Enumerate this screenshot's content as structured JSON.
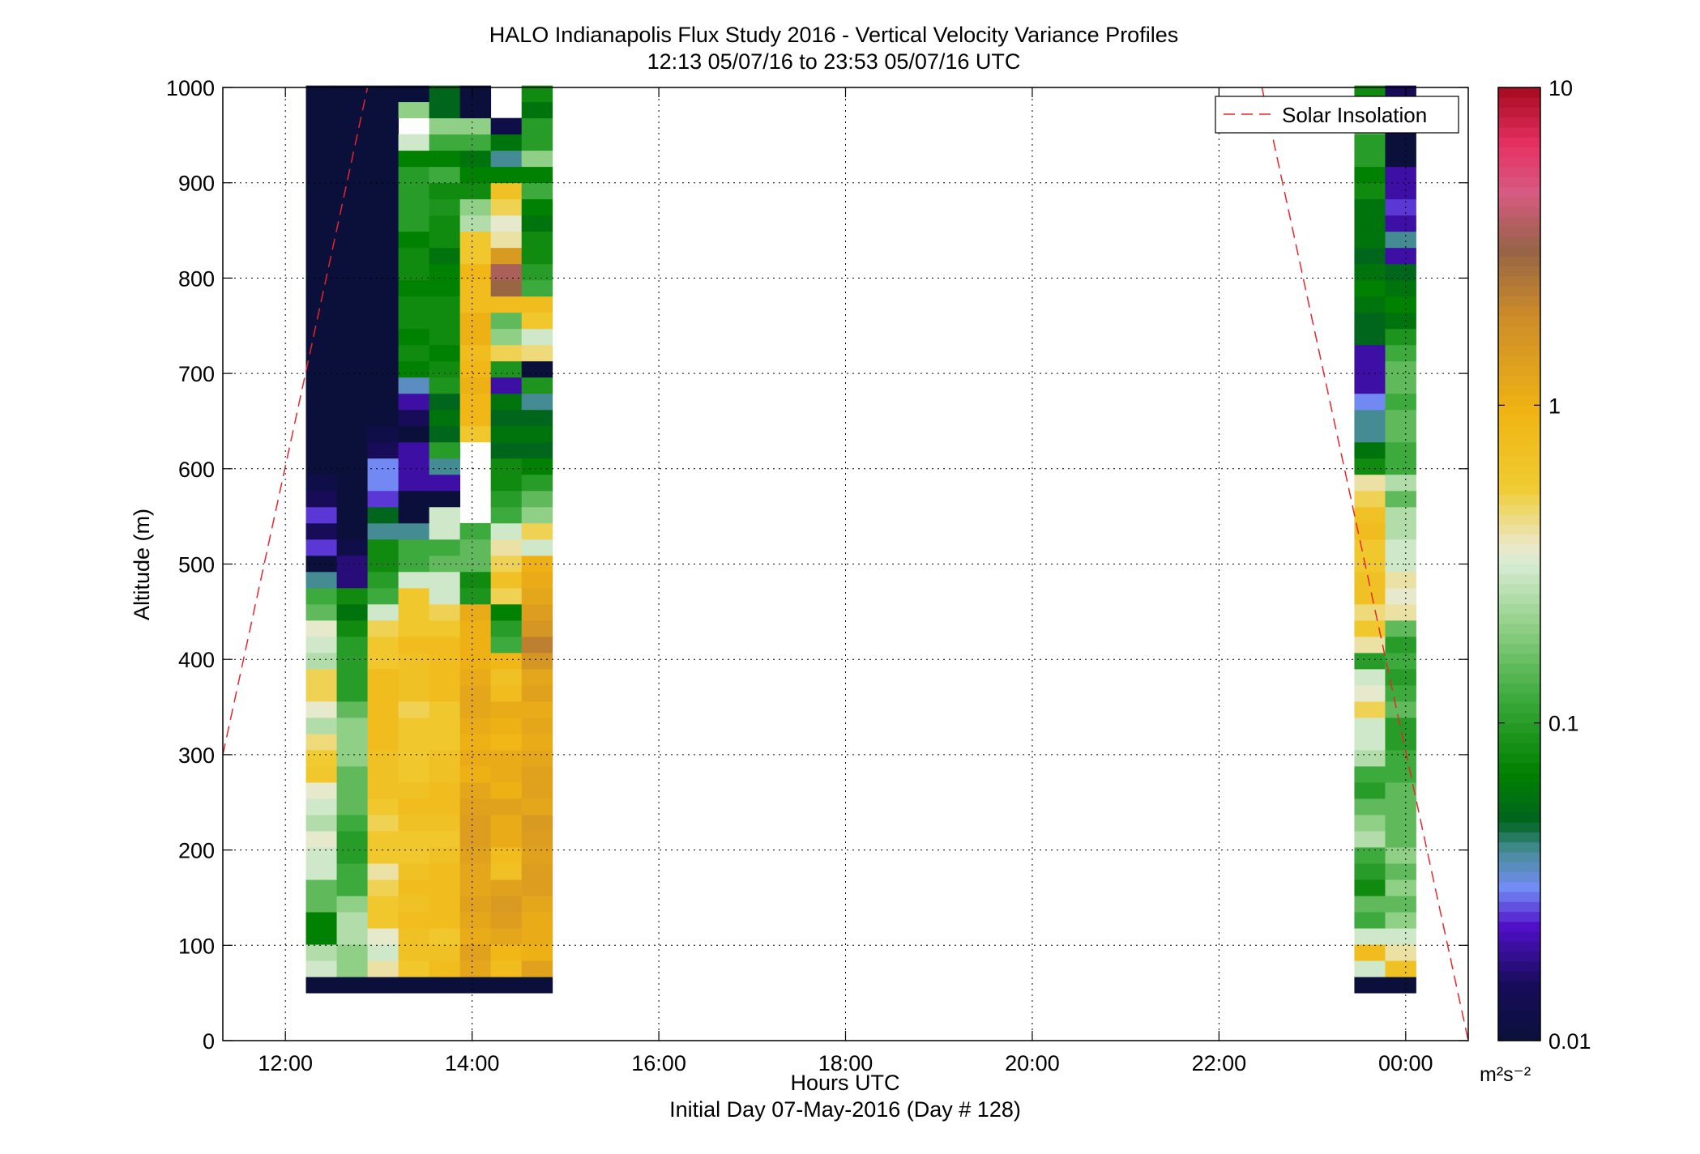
{
  "title": "HALO Indianapolis Flux Study 2016 - Vertical Velocity Variance Profiles",
  "subtitle": "12:13 05/07/16 to 23:53 05/07/16  UTC",
  "xlabel": "Hours UTC",
  "xlabel2": "Initial Day 07-May-2016 (Day # 128)",
  "ylabel": "Altitude (m)",
  "colorbar_unit": "m²s⁻²",
  "legend": {
    "label": "Solar Insolation",
    "color": "#e8262b",
    "location": "top-right"
  },
  "chart_data": {
    "type": "heatmap",
    "x_axis": {
      "min": 11.33,
      "max": 24.67,
      "ticks": [
        12,
        14,
        16,
        18,
        20,
        22,
        24
      ],
      "tick_labels": [
        "12:00",
        "14:00",
        "16:00",
        "18:00",
        "20:00",
        "22:00",
        "00:00"
      ],
      "grid": true
    },
    "y_axis": {
      "min": 0,
      "max": 1000,
      "ticks": [
        0,
        100,
        200,
        300,
        400,
        500,
        600,
        700,
        800,
        900,
        1000
      ],
      "tick_labels": [
        "0",
        "100",
        "200",
        "300",
        "400",
        "500",
        "600",
        "700",
        "800",
        "900",
        "1000"
      ],
      "grid": true
    },
    "color_scale": {
      "scale": "log",
      "min": 0.01,
      "max": 10,
      "ticks": [
        0.01,
        0.1,
        1,
        10
      ],
      "tick_labels": [
        "0.01",
        "0.1",
        "1",
        "10"
      ]
    },
    "altitude_bins_m": [
      50,
      67,
      84,
      101,
      118,
      135,
      152,
      169,
      186,
      203,
      220,
      237,
      254,
      271,
      288,
      305,
      322,
      339,
      356,
      373,
      390,
      407,
      424,
      441,
      458,
      475,
      492,
      509,
      526,
      543,
      560,
      577,
      594,
      611,
      628,
      645,
      662,
      679,
      696,
      713,
      730,
      747,
      764,
      781,
      798,
      815,
      832,
      849,
      866,
      883,
      900,
      917,
      934,
      951,
      968,
      985
    ],
    "profile_times_h": [
      12.22,
      12.55,
      12.88,
      13.21,
      13.54,
      13.87,
      14.2,
      14.53,
      23.45,
      23.78
    ],
    "variance_profiles": [
      [
        0.01,
        0.3,
        0.25,
        0.07,
        0.07,
        0.15,
        0.15,
        0.3,
        0.3,
        0.35,
        0.25,
        0.3,
        0.35,
        0.6,
        0.55,
        0.45,
        0.25,
        0.35,
        0.5,
        0.5,
        0.25,
        0.3,
        0.35,
        0.15,
        0.12,
        0.04,
        0.01,
        0.025,
        0.015,
        0.025,
        0.015,
        0.012,
        0.01,
        0.01,
        0.01,
        0.01,
        0.01,
        0.01,
        0.01,
        0.01,
        0.01,
        0.01,
        0.01,
        0.01,
        0.01,
        0.01,
        0.01,
        0.01,
        0.01,
        0.01,
        0.01,
        0.01,
        0.01,
        0.01,
        0.01,
        0.01
      ],
      [
        0.01,
        0.2,
        0.2,
        0.25,
        0.25,
        0.2,
        0.12,
        0.12,
        0.1,
        0.1,
        0.12,
        0.15,
        0.15,
        0.15,
        0.2,
        0.2,
        0.2,
        0.15,
        0.1,
        0.1,
        0.1,
        0.1,
        0.08,
        0.06,
        0.08,
        0.017,
        0.017,
        0.012,
        0.01,
        0.01,
        0.01,
        0.01,
        0.01,
        0.01,
        0.01,
        0.01,
        0.01,
        0.01,
        0.01,
        0.01,
        0.01,
        0.01,
        0.01,
        0.01,
        0.01,
        0.01,
        0.01,
        0.01,
        0.01,
        0.01,
        0.01,
        0.01,
        0.01,
        0.01,
        0.01,
        0.01
      ],
      [
        0.01,
        0.4,
        0.3,
        0.35,
        0.6,
        0.6,
        0.5,
        0.4,
        0.6,
        0.6,
        0.5,
        0.6,
        0.7,
        0.7,
        0.7,
        0.8,
        0.8,
        0.8,
        0.8,
        0.8,
        0.6,
        0.6,
        0.5,
        0.3,
        0.12,
        0.1,
        0.08,
        0.08,
        0.04,
        0.05,
        0.025,
        0.03,
        0.03,
        0.015,
        0.012,
        0.01,
        0.01,
        0.01,
        0.01,
        0.01,
        0.01,
        0.01,
        0.01,
        0.01,
        0.01,
        0.01,
        0.01,
        0.01,
        0.01,
        0.01,
        0.01,
        0.01,
        0.01,
        0.01,
        0.01,
        0.01
      ],
      [
        0.01,
        0.6,
        0.7,
        0.7,
        0.8,
        0.7,
        0.8,
        0.7,
        0.6,
        0.6,
        0.7,
        0.8,
        0.7,
        0.6,
        0.6,
        0.6,
        0.6,
        0.5,
        0.7,
        0.7,
        0.7,
        0.8,
        0.6,
        0.6,
        0.6,
        0.3,
        0.12,
        0.12,
        0.04,
        0.01,
        0.01,
        0.02,
        0.02,
        0.02,
        0.01,
        0.015,
        0.02,
        0.035,
        0.07,
        0.08,
        0.07,
        0.08,
        0.08,
        0.07,
        0.08,
        0.08,
        0.07,
        0.1,
        0.1,
        0.1,
        0.1,
        0.07,
        0.3,
        0.2,
        0.2,
        0.01
      ],
      [
        0.01,
        0.8,
        0.7,
        0.6,
        0.8,
        0.8,
        0.8,
        0.8,
        0.7,
        0.6,
        0.7,
        0.8,
        0.8,
        0.7,
        0.7,
        0.6,
        0.6,
        0.6,
        0.8,
        0.8,
        0.8,
        0.8,
        0.6,
        0.5,
        0.3,
        0.3,
        0.15,
        0.12,
        0.3,
        0.3,
        0.01,
        0.02,
        0.04,
        0.1,
        0.05,
        0.06,
        0.05,
        0.09,
        0.08,
        0.07,
        0.08,
        0.08,
        0.08,
        0.07,
        0.07,
        0.06,
        0.08,
        0.08,
        0.09,
        0.08,
        0.12,
        0.07,
        0.12,
        0.2,
        0.05,
        0.05
      ],
      [
        0.01,
        1.2,
        1.3,
        1.1,
        1.2,
        1.3,
        1.2,
        1.2,
        1.3,
        1.4,
        1.4,
        1.3,
        1.2,
        1.0,
        1.1,
        1.0,
        1.1,
        1.2,
        1.2,
        1.1,
        1.0,
        1.0,
        1.0,
        1.1,
        0.09,
        0.08,
        0.15,
        0.15,
        0.12,
        0.12,
        0.3,
        0.5,
        0.7,
        1.5,
        0.6,
        0.9,
        0.9,
        1.0,
        0.9,
        0.8,
        1.0,
        1.0,
        0.8,
        0.8,
        0.9,
        0.6,
        0.6,
        0.25,
        0.2,
        0.08,
        0.07,
        0.06,
        0.12,
        0.2,
        0.01,
        0.01
      ],
      [
        0.01,
        0.8,
        0.9,
        1.2,
        1.4,
        1.5,
        1.3,
        0.7,
        0.8,
        1.1,
        1.1,
        1.3,
        1.0,
        1.1,
        1.1,
        0.9,
        1.0,
        1.1,
        0.8,
        0.7,
        0.9,
        0.12,
        0.1,
        0.07,
        0.5,
        0.7,
        0.5,
        0.4,
        0.3,
        0.12,
        0.1,
        0.08,
        0.08,
        0.05,
        0.06,
        0.05,
        0.06,
        0.02,
        0.09,
        0.5,
        0.2,
        0.15,
        0.8,
        3.0,
        3.5,
        1.5,
        0.4,
        0.35,
        0.5,
        0.7,
        0.07,
        0.04,
        0.06,
        0.012,
        0.02,
        0.02
      ],
      [
        0.01,
        1.3,
        1.0,
        1.1,
        1.1,
        1.2,
        1.4,
        1.4,
        1.3,
        1.4,
        1.5,
        1.2,
        1.3,
        1.3,
        1.2,
        1.1,
        1.2,
        1.1,
        1.3,
        1.2,
        1.6,
        2.2,
        1.6,
        1.4,
        1.2,
        1.1,
        1.0,
        0.3,
        0.5,
        0.2,
        0.15,
        0.1,
        0.07,
        0.05,
        0.06,
        0.05,
        0.04,
        0.09,
        0.01,
        0.45,
        0.3,
        0.6,
        0.8,
        0.12,
        0.1,
        0.08,
        0.08,
        0.06,
        0.07,
        0.12,
        0.07,
        0.2,
        0.1,
        0.1,
        0.06,
        0.08
      ],
      [
        0.01,
        0.3,
        0.8,
        0.3,
        0.12,
        0.15,
        0.08,
        0.1,
        0.12,
        0.25,
        0.2,
        0.15,
        0.1,
        0.12,
        0.25,
        0.3,
        0.3,
        0.5,
        0.35,
        0.3,
        0.1,
        0.4,
        0.6,
        0.45,
        0.7,
        0.7,
        0.6,
        0.6,
        0.8,
        0.7,
        0.5,
        0.4,
        0.08,
        0.06,
        0.04,
        0.04,
        0.03,
        0.02,
        0.02,
        0.02,
        0.05,
        0.05,
        0.06,
        0.07,
        0.06,
        0.05,
        0.06,
        0.06,
        0.06,
        0.08,
        0.07,
        0.1,
        0.1,
        0.15,
        0.12,
        0.08
      ],
      [
        0.01,
        0.7,
        0.4,
        0.3,
        0.2,
        0.15,
        0.2,
        0.15,
        0.2,
        0.15,
        0.15,
        0.15,
        0.15,
        0.12,
        0.12,
        0.1,
        0.1,
        0.15,
        0.12,
        0.1,
        0.12,
        0.1,
        0.15,
        0.4,
        0.35,
        0.4,
        0.3,
        0.3,
        0.25,
        0.25,
        0.15,
        0.25,
        0.12,
        0.12,
        0.15,
        0.15,
        0.12,
        0.15,
        0.15,
        0.12,
        0.09,
        0.06,
        0.07,
        0.06,
        0.05,
        0.02,
        0.04,
        0.02,
        0.025,
        0.02,
        0.02,
        0.01,
        0.01,
        0.01,
        0.01,
        0.015
      ]
    ],
    "missing_cells": [
      {
        "profile": 3,
        "altitudes_m": [
          951
        ]
      },
      {
        "profile": 5,
        "altitudes_m": [
          543,
          560,
          577,
          594,
          611
        ]
      },
      {
        "profile": 6,
        "altitudes_m": [
          968,
          985
        ]
      }
    ],
    "solar_insolation_line": {
      "segments": [
        {
          "x": [
            11.33,
            12.88
          ],
          "y": [
            300,
            1000
          ]
        },
        {
          "x": [
            22.46,
            24.67
          ],
          "y": [
            1000,
            0
          ]
        }
      ]
    }
  }
}
